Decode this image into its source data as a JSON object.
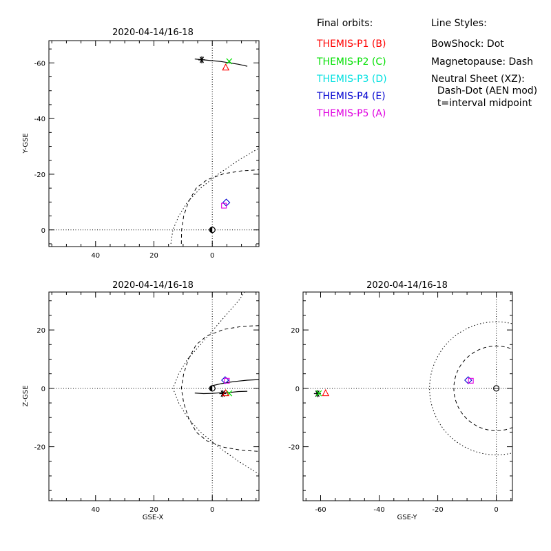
{
  "legend": {
    "orbits_title": "Final orbits:",
    "styles_title": "Line Styles:",
    "probes": [
      {
        "label": "THEMIS-P1 (B)",
        "color": "#ff0000"
      },
      {
        "label": "THEMIS-P2 (C)",
        "color": "#00e000"
      },
      {
        "label": "THEMIS-P3 (D)",
        "color": "#00e0e0"
      },
      {
        "label": "THEMIS-P4 (E)",
        "color": "#0000d0"
      },
      {
        "label": "THEMIS-P5 (A)",
        "color": "#e000e0"
      }
    ],
    "styles": [
      "BowShock: Dot",
      "Magnetopause: Dash",
      "Neutral Sheet (XZ):",
      "  Dash-Dot (AEN mod)",
      "  t=interval midpoint"
    ]
  },
  "chart_data": [
    {
      "type": "line",
      "title": "2020-04-14/16-18",
      "xlabel": "",
      "ylabel": "Y-GSE",
      "xlim": [
        56,
        -16
      ],
      "ylim": [
        6,
        -68
      ],
      "xticks": [
        40,
        20,
        0
      ],
      "yticks": [
        -60,
        -40,
        -20,
        0
      ],
      "series": [
        {
          "style": "orbit",
          "points": [
            [
              6,
              -61.4
            ],
            [
              3,
              -61.1
            ],
            [
              0,
              -60.8
            ],
            [
              -3,
              -60.5
            ],
            [
              -6,
              -60.0
            ],
            [
              -9,
              -59.5
            ],
            [
              -12,
              -58.8
            ]
          ]
        },
        {
          "style": "bowshock",
          "points": [
            [
              14.2,
              5
            ],
            [
              13.5,
              0
            ],
            [
              11.5,
              -5
            ],
            [
              8.5,
              -10
            ],
            [
              4,
              -15
            ],
            [
              -2,
              -20
            ],
            [
              -9,
              -25
            ],
            [
              -17,
              -30
            ],
            [
              -26,
              -35
            ]
          ]
        },
        {
          "style": "magnetopause",
          "points": [
            [
              10.6,
              5
            ],
            [
              10.5,
              0
            ],
            [
              9.8,
              -5
            ],
            [
              8.2,
              -10
            ],
            [
              5.5,
              -15
            ],
            [
              1.8,
              -18
            ],
            [
              -4,
              -20.2
            ],
            [
              -10,
              -21.2
            ],
            [
              -16,
              -21.6
            ]
          ]
        }
      ],
      "markers": [
        {
          "shape": "star",
          "color": "#000000",
          "x": 3.6,
          "y": -61.1
        },
        {
          "shape": "triangle",
          "color": "#ff0000",
          "x": -4.6,
          "y": -58.3
        },
        {
          "shape": "x",
          "color": "#00e000",
          "x": -5.8,
          "y": -60.6
        },
        {
          "shape": "diamond",
          "color": "#0000d0",
          "x": -4.8,
          "y": -9.8
        },
        {
          "shape": "square",
          "color": "#e000e0",
          "x": -4.0,
          "y": -8.7
        },
        {
          "shape": "earth",
          "color": "#000000",
          "x": 0,
          "y": 0
        }
      ]
    },
    {
      "type": "line",
      "title": "2020-04-14/16-18",
      "xlabel": "GSE-X",
      "ylabel": "Z-GSE",
      "xlim": [
        56,
        -16
      ],
      "ylim": [
        -38.5,
        33
      ],
      "xticks": [
        40,
        20,
        0
      ],
      "yticks": [
        20,
        0,
        -20
      ],
      "series": [
        {
          "style": "orbit",
          "points": [
            [
              6,
              -1.6
            ],
            [
              3,
              -1.8
            ],
            [
              0,
              -1.7
            ],
            [
              -3,
              -1.5
            ],
            [
              -6,
              -1.4
            ],
            [
              -9,
              -1.1
            ],
            [
              -12,
              -1.0
            ]
          ]
        },
        {
          "style": "orbit",
          "points": [
            [
              0,
              0.9
            ],
            [
              -3,
              1.6
            ],
            [
              -6,
              2.1
            ],
            [
              -9,
              2.5
            ],
            [
              -12,
              2.8
            ],
            [
              -16,
              3.0
            ]
          ]
        },
        {
          "style": "bowshock",
          "points": [
            [
              -16,
              40
            ],
            [
              -9,
              30
            ],
            [
              -2,
              22
            ],
            [
              4,
              15
            ],
            [
              8.5,
              10
            ],
            [
              11.5,
              5
            ],
            [
              13.5,
              0
            ],
            [
              11.5,
              -5
            ],
            [
              8.5,
              -10
            ],
            [
              4,
              -15
            ],
            [
              -2,
              -20
            ],
            [
              -9,
              -25
            ],
            [
              -17,
              -30
            ],
            [
              -26,
              -35
            ]
          ]
        },
        {
          "style": "magnetopause",
          "points": [
            [
              -16,
              21.5
            ],
            [
              -10,
              21.2
            ],
            [
              -4,
              20.2
            ],
            [
              1.8,
              18
            ],
            [
              5.5,
              15
            ],
            [
              8.2,
              10
            ],
            [
              9.8,
              5
            ],
            [
              10.6,
              0
            ],
            [
              9.8,
              -5
            ],
            [
              8.2,
              -10
            ],
            [
              5.5,
              -15
            ],
            [
              1.8,
              -18
            ],
            [
              -4,
              -20.2
            ],
            [
              -10,
              -21.2
            ],
            [
              -16,
              -21.6
            ]
          ]
        }
      ],
      "markers": [
        {
          "shape": "star",
          "color": "#000000",
          "x": -3.6,
          "y": -1.8
        },
        {
          "shape": "x",
          "color": "#00e000",
          "x": -5.8,
          "y": -1.7
        },
        {
          "shape": "triangle",
          "color": "#ff0000",
          "x": -4.6,
          "y": -1.7
        },
        {
          "shape": "diamond",
          "color": "#0000d0",
          "x": -4.4,
          "y": 2.8
        },
        {
          "shape": "square",
          "color": "#e000e0",
          "x": -5.0,
          "y": 2.6
        },
        {
          "shape": "earth",
          "color": "#000000",
          "x": 0,
          "y": 0
        }
      ]
    },
    {
      "type": "line",
      "title": "2020-04-14/16-18",
      "xlabel": "GSE-Y",
      "ylabel": "",
      "xlim": [
        -66,
        5.5
      ],
      "ylim": [
        -38.5,
        33
      ],
      "xticks": [
        -60,
        -40,
        -20,
        0
      ],
      "yticks": [
        20,
        0,
        -20
      ],
      "series": [
        {
          "style": "bowshock-circle",
          "center": [
            0,
            0
          ],
          "radius": 22.8
        },
        {
          "style": "magnetopause-circle",
          "center": [
            0,
            0
          ],
          "radius": 14.5
        }
      ],
      "markers": [
        {
          "shape": "star",
          "color": "#000000",
          "x": -61.1,
          "y": -1.8
        },
        {
          "shape": "x",
          "color": "#00e000",
          "x": -60.6,
          "y": -1.7
        },
        {
          "shape": "triangle",
          "color": "#ff0000",
          "x": -58.3,
          "y": -1.7
        },
        {
          "shape": "diamond",
          "color": "#0000d0",
          "x": -9.6,
          "y": 2.8
        },
        {
          "shape": "square",
          "color": "#e000e0",
          "x": -8.7,
          "y": 2.6
        },
        {
          "shape": "earth",
          "color": "#000000",
          "x": 0,
          "y": 0
        }
      ]
    }
  ]
}
